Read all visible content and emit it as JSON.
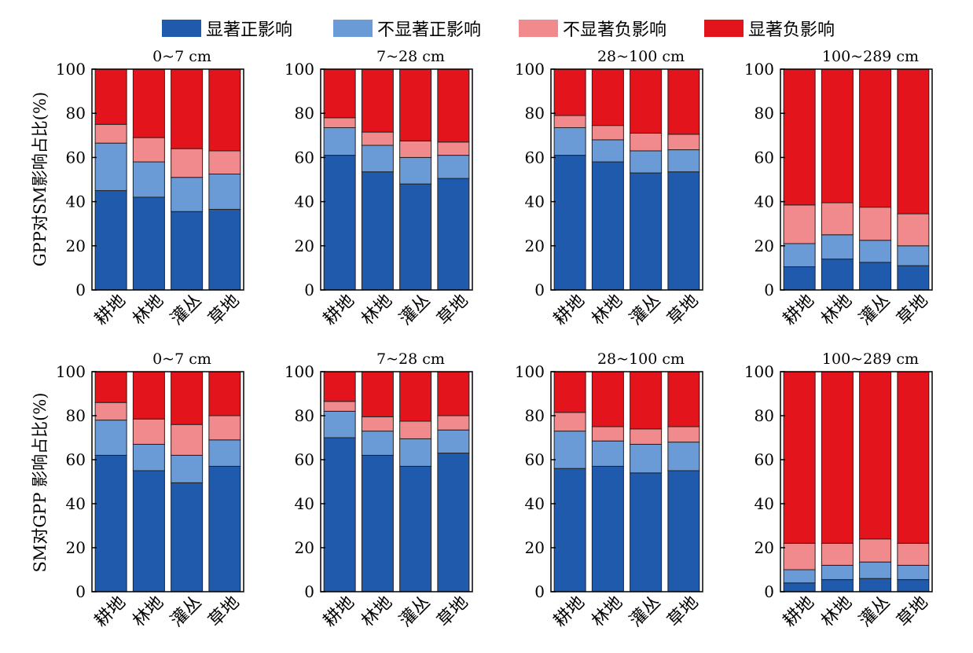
{
  "legend": [
    {
      "label": "显著正影响",
      "color": "#1f5aad"
    },
    {
      "label": "不显著正影响",
      "color": "#6b9bd6"
    },
    {
      "label": "不显著负影响",
      "color": "#f08a8c"
    },
    {
      "label": "显著负影响",
      "color": "#e3141b"
    }
  ],
  "y_axis_titles": [
    "GPP对SM影响占比(%)",
    "SM对GPP 影响占比(%)"
  ],
  "chart_data": [
    {
      "type": "bar",
      "stacked": true,
      "title": "0~7 cm",
      "categories": [
        "耕地",
        "林地",
        "灌丛",
        "草地"
      ],
      "ylim": [
        0,
        100
      ],
      "yticks": [
        0,
        20,
        40,
        60,
        80,
        100
      ],
      "series": [
        {
          "name": "显著正影响",
          "values": [
            45,
            42,
            35.5,
            36.5
          ]
        },
        {
          "name": "不显著正影响",
          "values": [
            21.5,
            16,
            15.5,
            16
          ]
        },
        {
          "name": "不显著负影响",
          "values": [
            8.5,
            11,
            13,
            10.5
          ]
        },
        {
          "name": "显著负影响",
          "values": [
            25,
            31,
            36,
            37
          ]
        }
      ]
    },
    {
      "type": "bar",
      "stacked": true,
      "title": "7~28 cm",
      "categories": [
        "耕地",
        "林地",
        "灌丛",
        "草地"
      ],
      "ylim": [
        0,
        100
      ],
      "yticks": [
        0,
        20,
        40,
        60,
        80,
        100
      ],
      "series": [
        {
          "name": "显著正影响",
          "values": [
            61,
            53.5,
            48,
            50.5
          ]
        },
        {
          "name": "不显著正影响",
          "values": [
            12.5,
            12,
            12,
            10.5
          ]
        },
        {
          "name": "不显著负影响",
          "values": [
            4.5,
            6,
            7.5,
            6
          ]
        },
        {
          "name": "显著负影响",
          "values": [
            22,
            28.5,
            32.5,
            33
          ]
        }
      ]
    },
    {
      "type": "bar",
      "stacked": true,
      "title": "28~100 cm",
      "categories": [
        "耕地",
        "林地",
        "灌丛",
        "草地"
      ],
      "ylim": [
        0,
        100
      ],
      "yticks": [
        0,
        20,
        40,
        60,
        80,
        100
      ],
      "series": [
        {
          "name": "显著正影响",
          "values": [
            61,
            58,
            53,
            53.5
          ]
        },
        {
          "name": "不显著正影响",
          "values": [
            12.5,
            10,
            10,
            10
          ]
        },
        {
          "name": "不显著负影响",
          "values": [
            5.5,
            6.5,
            8,
            7
          ]
        },
        {
          "name": "显著负影响",
          "values": [
            21,
            25.5,
            29,
            29.5
          ]
        }
      ]
    },
    {
      "type": "bar",
      "stacked": true,
      "title": "100~289 cm",
      "categories": [
        "耕地",
        "林地",
        "灌丛",
        "草地"
      ],
      "ylim": [
        0,
        100
      ],
      "yticks": [
        0,
        20,
        40,
        60,
        80,
        100
      ],
      "series": [
        {
          "name": "显著正影响",
          "values": [
            10.5,
            14,
            12.5,
            11
          ]
        },
        {
          "name": "不显著正影响",
          "values": [
            10.5,
            11,
            10,
            9
          ]
        },
        {
          "name": "不显著负影响",
          "values": [
            17.5,
            14.5,
            15,
            14.5
          ]
        },
        {
          "name": "显著负影响",
          "values": [
            61.5,
            60.5,
            62.5,
            65.5
          ]
        }
      ]
    },
    {
      "type": "bar",
      "stacked": true,
      "title": "0~7 cm",
      "categories": [
        "耕地",
        "林地",
        "灌丛",
        "草地"
      ],
      "ylim": [
        0,
        100
      ],
      "yticks": [
        0,
        20,
        40,
        60,
        80,
        100
      ],
      "series": [
        {
          "name": "显著正影响",
          "values": [
            62,
            55,
            49.5,
            57
          ]
        },
        {
          "name": "不显著正影响",
          "values": [
            16,
            12,
            12.5,
            12
          ]
        },
        {
          "name": "不显著负影响",
          "values": [
            8,
            11.5,
            14,
            11
          ]
        },
        {
          "name": "显著负影响",
          "values": [
            14,
            21.5,
            24,
            20
          ]
        }
      ]
    },
    {
      "type": "bar",
      "stacked": true,
      "title": "7~28 cm",
      "categories": [
        "耕地",
        "林地",
        "灌丛",
        "草地"
      ],
      "ylim": [
        0,
        100
      ],
      "yticks": [
        0,
        20,
        40,
        60,
        80,
        100
      ],
      "series": [
        {
          "name": "显著正影响",
          "values": [
            70,
            62,
            57,
            63
          ]
        },
        {
          "name": "不显著正影响",
          "values": [
            12,
            11,
            12.5,
            10.5
          ]
        },
        {
          "name": "不显著负影响",
          "values": [
            4.5,
            6.5,
            8,
            6.5
          ]
        },
        {
          "name": "显著负影响",
          "values": [
            13.5,
            20.5,
            22.5,
            20
          ]
        }
      ]
    },
    {
      "type": "bar",
      "stacked": true,
      "title": "28~100 cm",
      "categories": [
        "耕地",
        "林地",
        "灌丛",
        "草地"
      ],
      "ylim": [
        0,
        100
      ],
      "yticks": [
        0,
        20,
        40,
        60,
        80,
        100
      ],
      "series": [
        {
          "name": "显著正影响",
          "values": [
            56,
            57,
            54,
            55
          ]
        },
        {
          "name": "不显著正影响",
          "values": [
            17,
            11.5,
            13,
            13
          ]
        },
        {
          "name": "不显著负影响",
          "values": [
            8.5,
            6.5,
            7,
            7
          ]
        },
        {
          "name": "显著负影响",
          "values": [
            18.5,
            25,
            26,
            25
          ]
        }
      ]
    },
    {
      "type": "bar",
      "stacked": true,
      "title": "100~289 cm",
      "categories": [
        "耕地",
        "林地",
        "灌丛",
        "草地"
      ],
      "ylim": [
        0,
        100
      ],
      "yticks": [
        0,
        20,
        40,
        60,
        80,
        100
      ],
      "series": [
        {
          "name": "显著正影响",
          "values": [
            4,
            5.5,
            6,
            5.5
          ]
        },
        {
          "name": "不显著正影响",
          "values": [
            6,
            6.5,
            7.5,
            6.5
          ]
        },
        {
          "name": "不显著负影响",
          "values": [
            12,
            10,
            10.5,
            10
          ]
        },
        {
          "name": "显著负影响",
          "values": [
            78,
            78,
            76,
            78
          ]
        }
      ]
    }
  ]
}
